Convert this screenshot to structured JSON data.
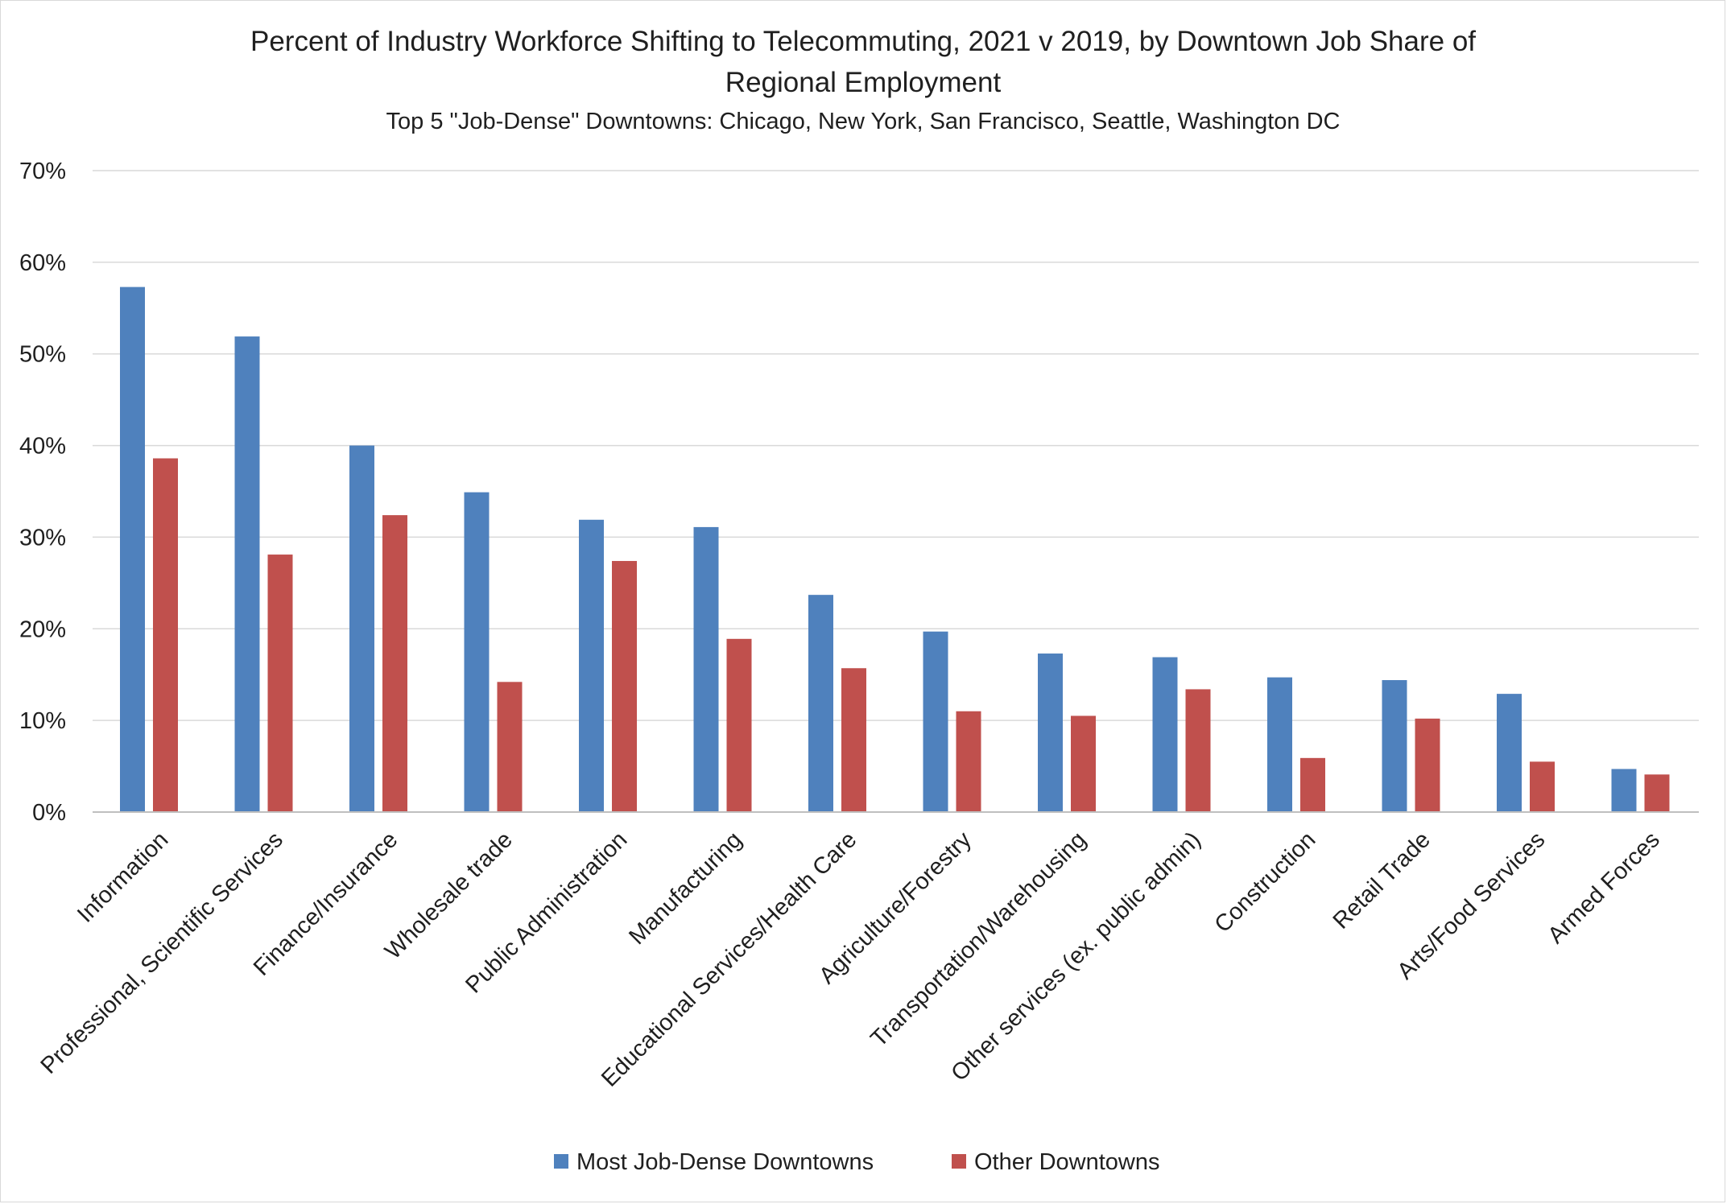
{
  "chart_data": {
    "type": "bar",
    "title_line1": "Percent of Industry Workforce Shifting to Telecommuting, 2021 v 2019, by Downtown Job Share of",
    "title_line2": "Regional Employment",
    "subtitle": "Top 5 \"Job-Dense\" Downtowns: Chicago, New York, San Francisco, Seattle, Washington DC",
    "xlabel": "",
    "ylabel": "",
    "ylim": [
      0,
      70
    ],
    "y_ticks": [
      "0%",
      "10%",
      "20%",
      "30%",
      "40%",
      "50%",
      "60%",
      "70%"
    ],
    "y_tick_values": [
      0,
      10,
      20,
      30,
      40,
      50,
      60,
      70
    ],
    "grid": true,
    "legend_position": "bottom",
    "categories": [
      "Information",
      "Professional, Scientific Services",
      "Finance/Insurance",
      "Wholesale trade",
      "Public Administration",
      "Manufacturing",
      "Educational Services/Health Care",
      "Agriculture/Forestry",
      "Transportation/Warehousing",
      "Other services (ex. public admin)",
      "Construction",
      "Retail Trade",
      "Arts/Food Services",
      "Armed Forces"
    ],
    "series": [
      {
        "name": "Most Job-Dense Downtowns",
        "color": "#4f81bd",
        "values": [
          57.3,
          51.9,
          40.0,
          34.9,
          31.9,
          31.1,
          23.7,
          19.7,
          17.3,
          16.9,
          14.7,
          14.4,
          12.9,
          4.7
        ]
      },
      {
        "name": "Other Downtowns",
        "color": "#c0504d",
        "values": [
          38.6,
          28.1,
          32.4,
          14.2,
          27.4,
          18.9,
          15.7,
          11.0,
          10.5,
          13.4,
          5.9,
          10.2,
          5.5,
          4.1
        ]
      }
    ]
  },
  "colors": {
    "gridline": "#d9d9d9",
    "axis": "#bfbfbf",
    "text": "#1f1f1f"
  }
}
